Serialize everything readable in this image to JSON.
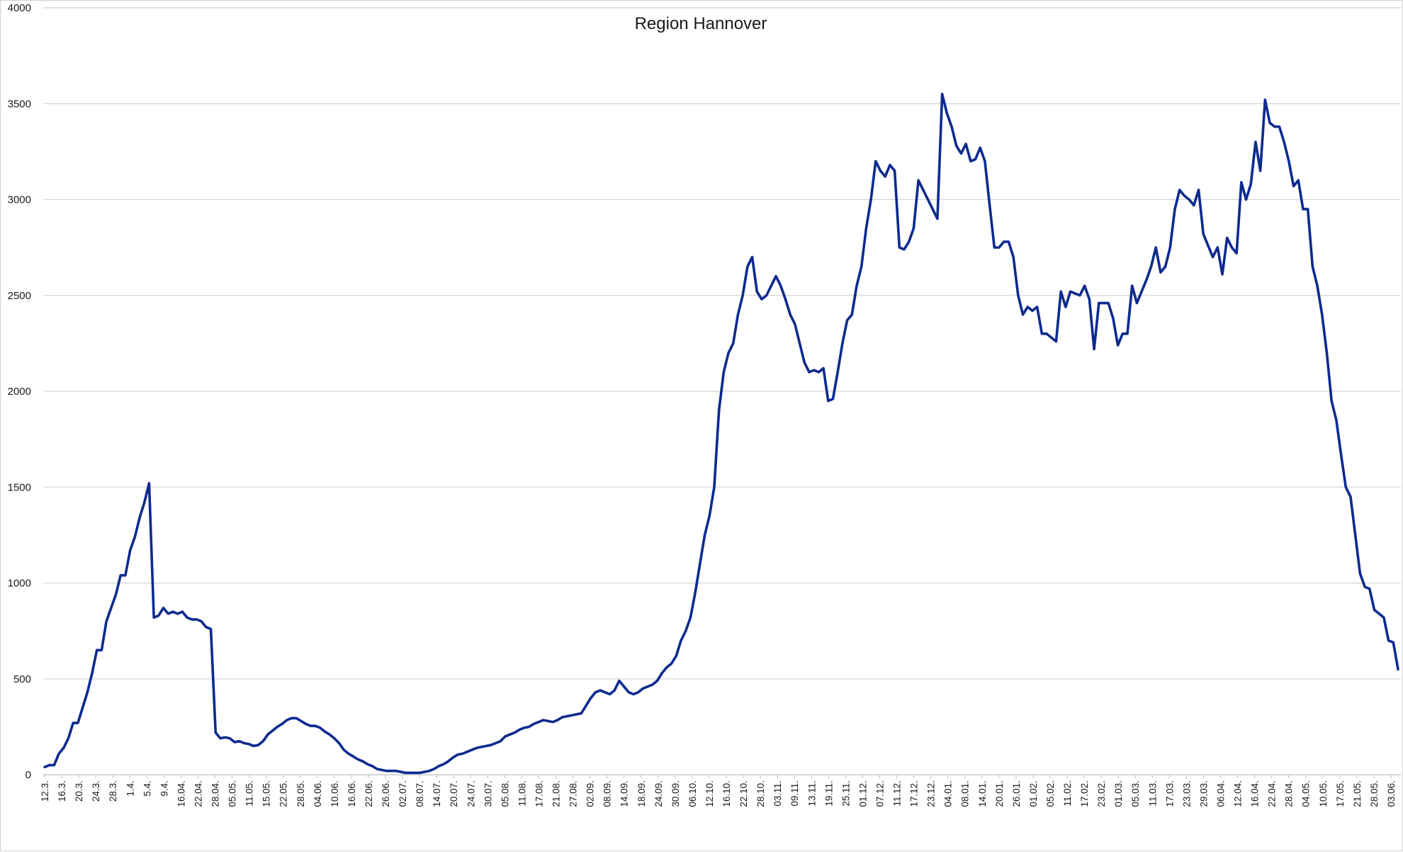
{
  "chart_data": {
    "type": "line",
    "title": "Region Hannover",
    "xlabel": "",
    "ylabel": "",
    "ylim": [
      0,
      4000
    ],
    "yticks": [
      0,
      500,
      1000,
      1500,
      2000,
      2500,
      3000,
      3500,
      4000
    ],
    "grid": "horizontal",
    "legend": "none",
    "line_color": "#0d2a8f",
    "x_ticks": [
      "12.3.",
      "16.3.",
      "20.3.",
      "24.3.",
      "28.3.",
      "1.4.",
      "5.4.",
      "9.4.",
      "16.04.",
      "22.04.",
      "28.04.",
      "05.05.",
      "11.05.",
      "15.05.",
      "22.05.",
      "28.05.",
      "04.06.",
      "10.06.",
      "16.06.",
      "22.06.",
      "26.06.",
      "02.07.",
      "08.07.",
      "14.07.",
      "20.07.",
      "24.07.",
      "30.07.",
      "05.08.",
      "11.08.",
      "17.08.",
      "21.08.",
      "27.08.",
      "02.09.",
      "08.09.",
      "14.09.",
      "18.09.",
      "24.09.",
      "30.09.",
      "06.10.",
      "12.10.",
      "16.10.",
      "22.10.",
      "28.10.",
      "03.11.",
      "09.11.",
      "13.11.",
      "19.11.",
      "25.11.",
      "01.12.",
      "07.12.",
      "11.12.",
      "17.12.",
      "23.12.",
      "04.01.",
      "08.01.",
      "14.01.",
      "20.01.",
      "26.01.",
      "01.02.",
      "05.02.",
      "11.02.",
      "17.02.",
      "23.02.",
      "01.03.",
      "05.03.",
      "11.03.",
      "17.03.",
      "23.03.",
      "29.03.",
      "06.04.",
      "12.04.",
      "16.04.",
      "22.04.",
      "28.04.",
      "04.05.",
      "10.05.",
      "17.05.",
      "21.05.",
      "28.05.",
      "03.06."
    ],
    "series": [
      {
        "values": [
          40,
          50,
          50,
          110,
          140,
          190,
          270,
          270,
          350,
          430,
          530,
          650,
          650,
          800,
          870,
          940,
          1040,
          1040,
          1170,
          1240,
          1340,
          1420,
          1520,
          820,
          830,
          870,
          840,
          850,
          840,
          850,
          820,
          810,
          810,
          800,
          770,
          760,
          220,
          190,
          195,
          190,
          170,
          175,
          165,
          160,
          150,
          155,
          175,
          210,
          230,
          250,
          265,
          285,
          295,
          295,
          280,
          265,
          255,
          255,
          245,
          225,
          210,
          190,
          165,
          130,
          110,
          95,
          80,
          70,
          55,
          45,
          30,
          25,
          20,
          20,
          20,
          15,
          10,
          10,
          10,
          10,
          15,
          20,
          30,
          45,
          55,
          70,
          90,
          105,
          110,
          120,
          130,
          140,
          145,
          150,
          155,
          165,
          175,
          200,
          210,
          220,
          235,
          245,
          250,
          265,
          275,
          285,
          280,
          275,
          285,
          300,
          305,
          310,
          315,
          320,
          360,
          400,
          430,
          440,
          430,
          420,
          440,
          490,
          460,
          430,
          420,
          430,
          450,
          460,
          470,
          490,
          530,
          560,
          580,
          620,
          700,
          750,
          820,
          950,
          1100,
          1250,
          1350,
          1500,
          1900,
          2100,
          2200,
          2250,
          2400,
          2500,
          2650,
          2700,
          2520,
          2480,
          2500,
          2550,
          2600,
          2550,
          2480,
          2400,
          2350,
          2250,
          2150,
          2100,
          2110,
          2100,
          2120,
          1950,
          1960,
          2100,
          2250,
          2370,
          2400,
          2550,
          2650,
          2850,
          3000,
          3200,
          3150,
          3120,
          3180,
          3150,
          2750,
          2740,
          2780,
          2850,
          3100,
          3050,
          3000,
          2950,
          2900,
          3550,
          3450,
          3380,
          3280,
          3240,
          3290,
          3200,
          3210,
          3270,
          3200,
          2970,
          2750,
          2750,
          2780,
          2780,
          2700,
          2500,
          2400,
          2440,
          2420,
          2440,
          2300,
          2300,
          2280,
          2260,
          2520,
          2440,
          2520,
          2510,
          2500,
          2550,
          2480,
          2220,
          2460,
          2460,
          2460,
          2380,
          2240,
          2300,
          2300,
          2550,
          2460,
          2520,
          2580,
          2650,
          2750,
          2620,
          2650,
          2750,
          2950,
          3050,
          3020,
          3000,
          2970,
          3050,
          2820,
          2760,
          2700,
          2750,
          2610,
          2800,
          2750,
          2720,
          3090,
          3000,
          3080,
          3300,
          3150,
          3520,
          3400,
          3380,
          3380,
          3300,
          3200,
          3070,
          3100,
          2950,
          2950,
          2650,
          2550,
          2400,
          2200,
          1950,
          1850,
          1670,
          1500,
          1450,
          1250,
          1050,
          980,
          970,
          860,
          840,
          820,
          700,
          690,
          550
        ]
      }
    ]
  }
}
